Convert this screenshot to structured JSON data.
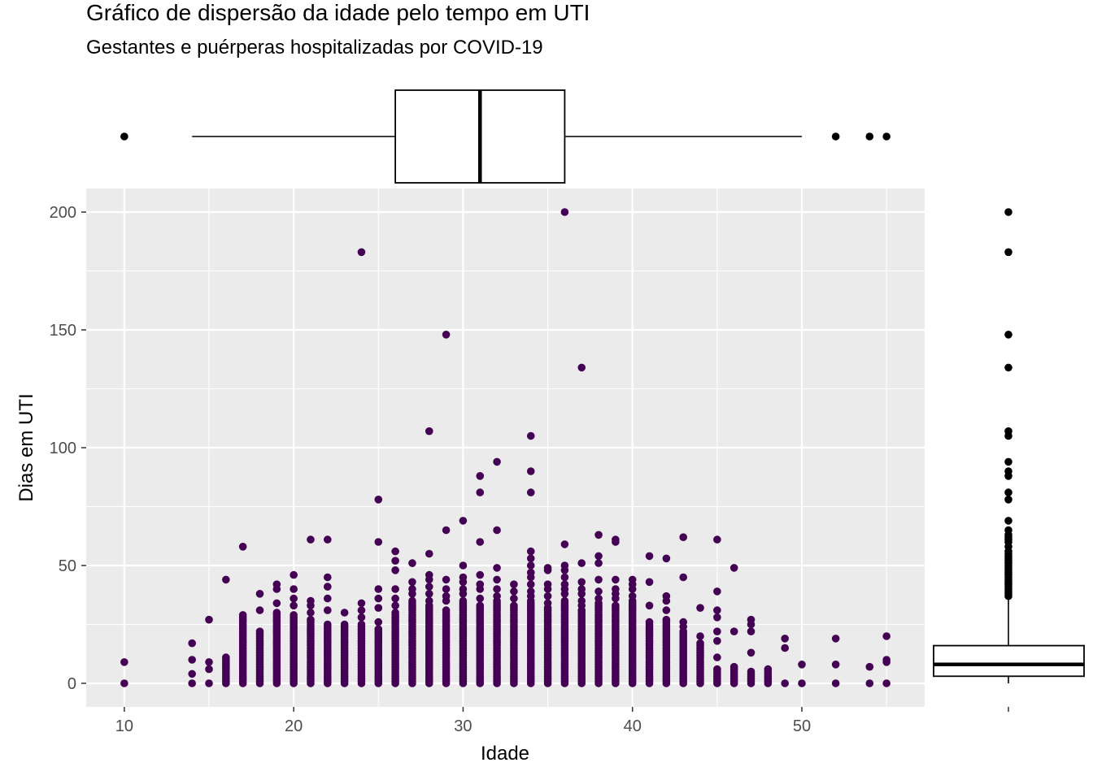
{
  "chart_data": {
    "type": "scatter",
    "title": "Gráfico de dispersão da idade pelo tempo em UTI",
    "subtitle": "Gestantes e puérperas hospitalizadas por COVID-19",
    "xlabel": "Idade",
    "ylabel": "Dias em UTI",
    "xlim": [
      7.75,
      57.25
    ],
    "ylim": [
      -10,
      210
    ],
    "x_ticks": [
      10,
      20,
      30,
      40,
      50
    ],
    "y_ticks": [
      0,
      50,
      100,
      150,
      200
    ],
    "grid": true,
    "point_color": "#440154",
    "panel_background": "#ebebeb",
    "marginal_boxplots": {
      "x": {
        "q1": 26,
        "median": 31,
        "q3": 36,
        "whisker_low": 14,
        "whisker_high": 50,
        "outliers": [
          10,
          52,
          54,
          55
        ]
      },
      "y": {
        "q1": 3,
        "median": 8,
        "q3": 16,
        "whisker_low": 0,
        "whisker_high": 36,
        "outliers": [
          37,
          38,
          39,
          40,
          41,
          42,
          43,
          44,
          45,
          46,
          47,
          48,
          49,
          50,
          51,
          52,
          53,
          54,
          55,
          56,
          58,
          60,
          61,
          62,
          63,
          65,
          69,
          78,
          81,
          88,
          90,
          94,
          105,
          107,
          134,
          148,
          183,
          200
        ]
      }
    },
    "columns": [
      {
        "x": 10,
        "max": 0,
        "extra": [
          9
        ]
      },
      {
        "x": 14,
        "max": 0,
        "extra": [
          4,
          10,
          17
        ]
      },
      {
        "x": 15,
        "max": 0,
        "extra": [
          6,
          9,
          27
        ]
      },
      {
        "x": 16,
        "max": 11,
        "extra": [
          44
        ]
      },
      {
        "x": 17,
        "max": 29,
        "extra": [
          58
        ]
      },
      {
        "x": 18,
        "max": 22,
        "extra": [
          31,
          38
        ]
      },
      {
        "x": 19,
        "max": 30,
        "extra": [
          34,
          40,
          42
        ]
      },
      {
        "x": 20,
        "max": 29,
        "extra": [
          33,
          36,
          40,
          46
        ]
      },
      {
        "x": 21,
        "max": 27,
        "extra": [
          30,
          33,
          35,
          61
        ]
      },
      {
        "x": 22,
        "max": 25,
        "extra": [
          31,
          36,
          41,
          45,
          61
        ]
      },
      {
        "x": 23,
        "max": 25,
        "extra": [
          30
        ]
      },
      {
        "x": 24,
        "max": 25,
        "extra": [
          28,
          31,
          34,
          183
        ]
      },
      {
        "x": 25,
        "max": 23,
        "extra": [
          26,
          32,
          36,
          40,
          60,
          78
        ]
      },
      {
        "x": 26,
        "max": 30,
        "extra": [
          33,
          36,
          40,
          48,
          52,
          56
        ]
      },
      {
        "x": 27,
        "max": 35,
        "extra": [
          38,
          40,
          43,
          51
        ]
      },
      {
        "x": 28,
        "max": 33,
        "extra": [
          35,
          38,
          41,
          44,
          46,
          55,
          107
        ]
      },
      {
        "x": 29,
        "max": 31,
        "extra": [
          35,
          37,
          40,
          44,
          65,
          148
        ]
      },
      {
        "x": 30,
        "max": 35,
        "extra": [
          38,
          40,
          43,
          45,
          50,
          69
        ]
      },
      {
        "x": 31,
        "max": 33,
        "extra": [
          36,
          40,
          42,
          46,
          60,
          81,
          88
        ]
      },
      {
        "x": 32,
        "max": 35,
        "extra": [
          37,
          40,
          44,
          49,
          65,
          94
        ]
      },
      {
        "x": 33,
        "max": 33,
        "extra": [
          36,
          39,
          42
        ]
      },
      {
        "x": 34,
        "max": 35,
        "extra": [
          37,
          39,
          42,
          45,
          47,
          50,
          53,
          56,
          81,
          90,
          105
        ]
      },
      {
        "x": 35,
        "max": 32,
        "extra": [
          34,
          37,
          40,
          42,
          48,
          49
        ]
      },
      {
        "x": 36,
        "max": 35,
        "extra": [
          38,
          40,
          42,
          45,
          48,
          50,
          59,
          200
        ]
      },
      {
        "x": 37,
        "max": 31,
        "extra": [
          33,
          35,
          38,
          40,
          43,
          51,
          134
        ]
      },
      {
        "x": 38,
        "max": 34,
        "extra": [
          36,
          39,
          44,
          51,
          54,
          63
        ]
      },
      {
        "x": 39,
        "max": 33,
        "extra": [
          36,
          38,
          40,
          44,
          60,
          61
        ]
      },
      {
        "x": 40,
        "max": 35,
        "extra": [
          37,
          40,
          42,
          44
        ]
      },
      {
        "x": 41,
        "max": 26,
        "extra": [
          33,
          43,
          54
        ]
      },
      {
        "x": 42,
        "max": 27,
        "extra": [
          31,
          35,
          37,
          53
        ]
      },
      {
        "x": 43,
        "max": 22,
        "extra": [
          24,
          26,
          45,
          62
        ]
      },
      {
        "x": 44,
        "max": 17,
        "extra": [
          20,
          32
        ]
      },
      {
        "x": 45,
        "max": 6,
        "extra": [
          11,
          18,
          22,
          28,
          31,
          39,
          61
        ]
      },
      {
        "x": 46,
        "max": 7,
        "extra": [
          22,
          49
        ]
      },
      {
        "x": 47,
        "max": 4,
        "extra": [
          5,
          13,
          22,
          25,
          27
        ]
      },
      {
        "x": 48,
        "max": 3,
        "extra": [
          4,
          5,
          6
        ]
      },
      {
        "x": 49,
        "max": 0,
        "extra": [
          15,
          19
        ]
      },
      {
        "x": 50,
        "max": 0,
        "extra": [
          8
        ]
      },
      {
        "x": 52,
        "max": 0,
        "extra": [
          8,
          19
        ]
      },
      {
        "x": 54,
        "max": 0,
        "extra": [
          7
        ]
      },
      {
        "x": 55,
        "max": 0,
        "extra": [
          9,
          10,
          20
        ]
      }
    ]
  }
}
